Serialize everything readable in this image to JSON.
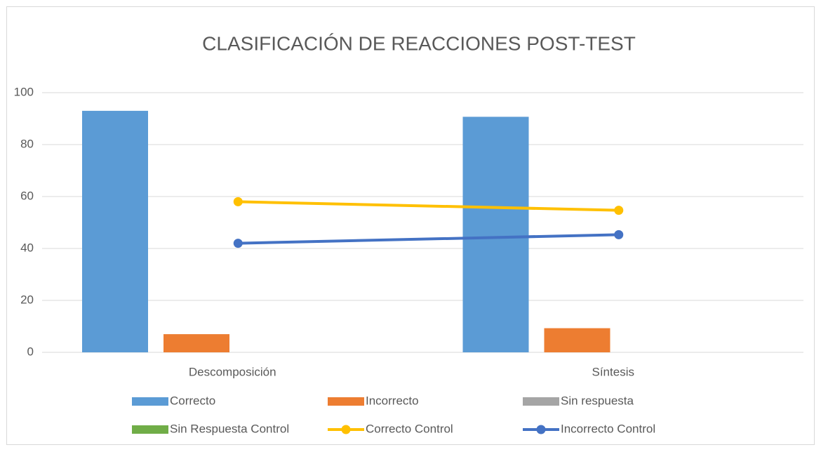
{
  "chart_data": {
    "type": "bar",
    "title": "CLASIFICACIÓN DE REACCIONES POST-TEST",
    "categories": [
      "Descomposición",
      "Síntesis"
    ],
    "series": [
      {
        "name": "Correcto",
        "type": "bar",
        "color": "#5b9bd5",
        "values": [
          93,
          90.7
        ]
      },
      {
        "name": "Incorrecto",
        "type": "bar",
        "color": "#ed7d31",
        "values": [
          7,
          9.3
        ]
      },
      {
        "name": "Sin respuesta",
        "type": "bar",
        "color": "#a5a5a5",
        "values": [
          0,
          0
        ]
      },
      {
        "name": "Sin Respuesta Control",
        "type": "bar",
        "color": "#70ad47",
        "values": [
          0,
          0
        ]
      },
      {
        "name": "Correcto Control",
        "type": "line",
        "color": "#ffc000",
        "values": [
          58,
          54.7
        ]
      },
      {
        "name": "Incorrecto Control",
        "type": "line",
        "color": "#4472c4",
        "values": [
          42,
          45.3
        ]
      }
    ],
    "ylim": [
      0,
      100
    ],
    "yticks": [
      0,
      20,
      40,
      60,
      80,
      100
    ],
    "grid": true,
    "legend": "bottom"
  }
}
